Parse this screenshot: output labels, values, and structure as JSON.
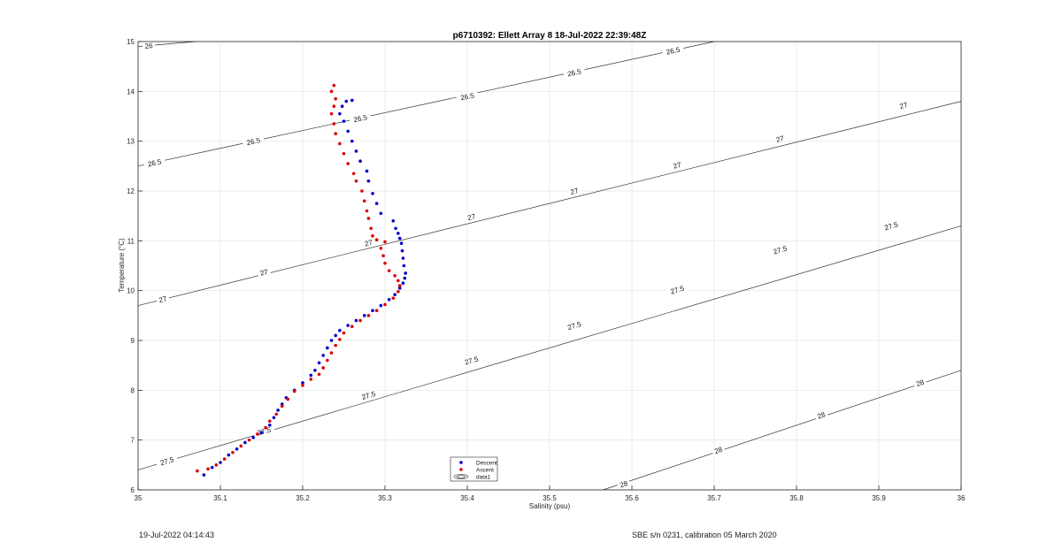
{
  "chart_data": {
    "type": "scatter",
    "title": "p6710392: Ellett Array 8 18-Jul-2022 22:39:48Z",
    "xlabel": "Salinity (psu)",
    "ylabel": "Temperature (°C)",
    "xlim": [
      35,
      36
    ],
    "ylim": [
      6,
      15
    ],
    "xticks": [
      "35",
      "35.1",
      "35.2",
      "35.3",
      "35.4",
      "35.5",
      "35.6",
      "35.7",
      "35.8",
      "35.9",
      "36"
    ],
    "yticks": [
      "6",
      "7",
      "8",
      "9",
      "10",
      "11",
      "12",
      "13",
      "14",
      "15"
    ],
    "grid": true,
    "legend": {
      "position": "bottom-center",
      "entries": [
        {
          "name": "Descent",
          "color": "#0000cc"
        },
        {
          "name": "Ascent",
          "color": "#dd0000"
        },
        {
          "name": "data1",
          "color": "#333333"
        }
      ]
    },
    "contours": [
      {
        "level": "26",
        "points": [
          [
            35.0,
            14.9
          ],
          [
            35.07,
            15.0
          ]
        ],
        "labels": [
          [
            35.013,
            14.92
          ]
        ]
      },
      {
        "level": "26.5",
        "points": [
          [
            35.0,
            12.5
          ],
          [
            35.7,
            15.0
          ]
        ],
        "labels": [
          [
            35.02,
            12.57
          ],
          [
            35.14,
            13.0
          ],
          [
            35.27,
            13.46
          ],
          [
            35.4,
            13.9
          ],
          [
            35.53,
            14.38
          ],
          [
            35.65,
            14.82
          ]
        ]
      },
      {
        "level": "27",
        "points": [
          [
            35.0,
            9.7
          ],
          [
            36.0,
            13.8
          ]
        ],
        "labels": [
          [
            35.03,
            9.83
          ],
          [
            35.153,
            10.37
          ],
          [
            35.28,
            10.96
          ],
          [
            35.405,
            11.48
          ],
          [
            35.53,
            12.0
          ],
          [
            35.655,
            12.52
          ],
          [
            35.78,
            13.05
          ],
          [
            35.93,
            13.72
          ]
        ]
      },
      {
        "level": "27.5",
        "points": [
          [
            35.0,
            6.4
          ],
          [
            36.0,
            11.3
          ]
        ],
        "labels": [
          [
            35.035,
            6.58
          ],
          [
            35.153,
            7.18
          ],
          [
            35.28,
            7.9
          ],
          [
            35.405,
            8.6
          ],
          [
            35.53,
            9.3
          ],
          [
            35.655,
            10.02
          ],
          [
            35.78,
            10.82
          ],
          [
            35.915,
            11.3
          ]
        ]
      },
      {
        "level": "28",
        "points": [
          [
            35.565,
            6.0
          ],
          [
            36.0,
            8.4
          ]
        ],
        "labels": [
          [
            35.59,
            6.12
          ],
          [
            35.705,
            6.8
          ],
          [
            35.83,
            7.5
          ],
          [
            35.95,
            8.15
          ]
        ]
      }
    ],
    "series": [
      {
        "name": "Descent",
        "color": "#0000cc",
        "points": [
          [
            35.08,
            6.3
          ],
          [
            35.09,
            6.45
          ],
          [
            35.1,
            6.55
          ],
          [
            35.11,
            6.7
          ],
          [
            35.12,
            6.82
          ],
          [
            35.13,
            6.95
          ],
          [
            35.14,
            7.05
          ],
          [
            35.15,
            7.15
          ],
          [
            35.16,
            7.3
          ],
          [
            35.165,
            7.45
          ],
          [
            35.17,
            7.6
          ],
          [
            35.175,
            7.72
          ],
          [
            35.18,
            7.85
          ],
          [
            35.19,
            8.0
          ],
          [
            35.2,
            8.15
          ],
          [
            35.21,
            8.3
          ],
          [
            35.215,
            8.4
          ],
          [
            35.22,
            8.55
          ],
          [
            35.225,
            8.7
          ],
          [
            35.23,
            8.85
          ],
          [
            35.235,
            9.0
          ],
          [
            35.24,
            9.1
          ],
          [
            35.245,
            9.2
          ],
          [
            35.255,
            9.3
          ],
          [
            35.265,
            9.4
          ],
          [
            35.275,
            9.5
          ],
          [
            35.285,
            9.6
          ],
          [
            35.295,
            9.7
          ],
          [
            35.305,
            9.82
          ],
          [
            35.312,
            9.92
          ],
          [
            35.318,
            10.05
          ],
          [
            35.322,
            10.15
          ],
          [
            35.324,
            10.25
          ],
          [
            35.325,
            10.35
          ],
          [
            35.323,
            10.5
          ],
          [
            35.322,
            10.65
          ],
          [
            35.321,
            10.8
          ],
          [
            35.32,
            10.95
          ],
          [
            35.318,
            11.05
          ],
          [
            35.316,
            11.15
          ],
          [
            35.313,
            11.25
          ],
          [
            35.31,
            11.4
          ],
          [
            35.295,
            11.55
          ],
          [
            35.29,
            11.75
          ],
          [
            35.285,
            11.95
          ],
          [
            35.28,
            12.2
          ],
          [
            35.278,
            12.4
          ],
          [
            35.27,
            12.6
          ],
          [
            35.265,
            12.8
          ],
          [
            35.26,
            13.0
          ],
          [
            35.255,
            13.2
          ],
          [
            35.25,
            13.4
          ],
          [
            35.245,
            13.55
          ],
          [
            35.248,
            13.7
          ],
          [
            35.253,
            13.8
          ],
          [
            35.26,
            13.82
          ]
        ]
      },
      {
        "name": "Ascent",
        "color": "#dd0000",
        "points": [
          [
            35.072,
            6.38
          ],
          [
            35.085,
            6.42
          ],
          [
            35.095,
            6.5
          ],
          [
            35.105,
            6.62
          ],
          [
            35.115,
            6.75
          ],
          [
            35.125,
            6.88
          ],
          [
            35.135,
            7.0
          ],
          [
            35.145,
            7.12
          ],
          [
            35.155,
            7.25
          ],
          [
            35.16,
            7.38
          ],
          [
            35.168,
            7.52
          ],
          [
            35.175,
            7.68
          ],
          [
            35.182,
            7.82
          ],
          [
            35.19,
            7.98
          ],
          [
            35.2,
            8.1
          ],
          [
            35.21,
            8.22
          ],
          [
            35.22,
            8.32
          ],
          [
            35.225,
            8.45
          ],
          [
            35.23,
            8.6
          ],
          [
            35.235,
            8.75
          ],
          [
            35.24,
            8.9
          ],
          [
            35.245,
            9.02
          ],
          [
            35.25,
            9.15
          ],
          [
            35.26,
            9.28
          ],
          [
            35.27,
            9.4
          ],
          [
            35.28,
            9.5
          ],
          [
            35.29,
            9.6
          ],
          [
            35.3,
            9.72
          ],
          [
            35.31,
            9.85
          ],
          [
            35.316,
            9.98
          ],
          [
            35.318,
            10.1
          ],
          [
            35.316,
            10.2
          ],
          [
            35.312,
            10.3
          ],
          [
            35.305,
            10.4
          ],
          [
            35.3,
            10.55
          ],
          [
            35.298,
            10.7
          ],
          [
            35.295,
            10.85
          ],
          [
            35.3,
            10.98
          ],
          [
            35.29,
            11.02
          ],
          [
            35.285,
            11.1
          ],
          [
            35.283,
            11.25
          ],
          [
            35.28,
            11.45
          ],
          [
            35.278,
            11.6
          ],
          [
            35.275,
            11.8
          ],
          [
            35.272,
            12.0
          ],
          [
            35.265,
            12.2
          ],
          [
            35.262,
            12.35
          ],
          [
            35.255,
            12.55
          ],
          [
            35.25,
            12.75
          ],
          [
            35.245,
            12.95
          ],
          [
            35.24,
            13.15
          ],
          [
            35.238,
            13.35
          ],
          [
            35.235,
            13.55
          ],
          [
            35.238,
            13.7
          ],
          [
            35.24,
            13.85
          ],
          [
            35.235,
            14.0
          ],
          [
            35.238,
            14.12
          ]
        ]
      }
    ]
  },
  "footer": {
    "left": "19-Jul-2022 04:14:43",
    "right": "SBE s/n 0231, calibration 05 March 2020"
  }
}
